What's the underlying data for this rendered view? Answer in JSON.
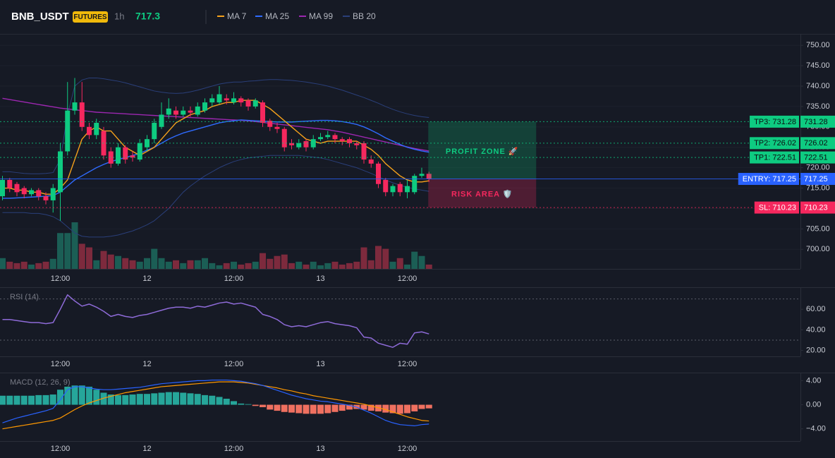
{
  "chart_data": [
    {
      "type": "candlestick",
      "title": "BNB_USDT",
      "badge": "FUTURES",
      "interval": "1h",
      "last_price": 717.3,
      "categories": [
        null,
        null,
        null,
        null,
        null,
        null,
        null,
        null,
        "12:00",
        null,
        null,
        null,
        null,
        null,
        null,
        null,
        null,
        null,
        null,
        null,
        "12",
        null,
        null,
        null,
        null,
        null,
        null,
        null,
        null,
        null,
        null,
        null,
        "12:00",
        null,
        null,
        null,
        null,
        null,
        null,
        null,
        null,
        null,
        null,
        null,
        "13",
        null,
        null,
        null,
        null,
        null,
        null,
        null,
        null,
        null,
        null,
        null,
        "12:00",
        null,
        null,
        null
      ],
      "open": [
        713,
        717,
        716,
        715,
        713.5,
        714.5,
        713,
        712,
        714,
        724,
        734,
        736,
        730,
        728,
        729,
        724,
        721,
        725,
        723,
        722,
        725,
        727,
        730,
        733,
        734,
        733,
        734,
        733,
        734,
        736,
        736,
        737,
        736,
        737,
        736.5,
        735,
        736,
        731.5,
        730,
        729.5,
        726,
        725,
        726.5,
        725,
        727,
        727.5,
        728,
        727,
        727,
        726,
        726,
        722,
        721,
        717,
        714,
        716,
        714,
        714,
        718,
        718.5
      ],
      "high": [
        718,
        717.5,
        716.5,
        715.5,
        715,
        715,
        714,
        716,
        726,
        741,
        742,
        741,
        731,
        732,
        730,
        725,
        726,
        725.5,
        724,
        727,
        728,
        732,
        736,
        737,
        735,
        735,
        735,
        736,
        737,
        738,
        740,
        738,
        738.5,
        737.5,
        737,
        737,
        736.5,
        732,
        731,
        730,
        727,
        727,
        727,
        728,
        728.5,
        729,
        728.5,
        727.5,
        727.5,
        726.5,
        726.5,
        723,
        721.5,
        717.5,
        716,
        716.5,
        717,
        718.5,
        720,
        719
      ],
      "low": [
        712,
        714,
        713,
        712.5,
        713,
        712,
        711,
        709,
        707,
        723,
        733,
        729,
        727,
        727,
        722,
        720,
        720.5,
        721,
        721.5,
        721.5,
        724,
        726,
        729.5,
        732,
        732,
        732.5,
        732.5,
        732.5,
        733.5,
        735,
        735.5,
        735.5,
        735.5,
        735,
        734,
        734.5,
        730,
        729,
        728.5,
        724,
        724.5,
        724.5,
        724,
        724.5,
        726.5,
        727,
        726,
        725.5,
        725,
        724.5,
        721,
        720,
        715,
        713,
        713,
        713,
        712.5,
        713.5,
        717.5,
        716.5
      ],
      "close": [
        717,
        715,
        714,
        713.5,
        714.5,
        713,
        712,
        715,
        724,
        734,
        736,
        730,
        728,
        731,
        723,
        721,
        725,
        722,
        722.5,
        726,
        727,
        731,
        733,
        734.5,
        733,
        734,
        733.5,
        735,
        736,
        737,
        738,
        736.5,
        737,
        736,
        735,
        736.5,
        731,
        730,
        729.5,
        725,
        725.5,
        726,
        725,
        727,
        727.5,
        728,
        727,
        726.5,
        726,
        725.5,
        722,
        721,
        716,
        714,
        715.5,
        714,
        715.5,
        718,
        718.5,
        717.25
      ],
      "volume": [
        15,
        10,
        8,
        10,
        6,
        8,
        10,
        14,
        50,
        50,
        65,
        35,
        30,
        12,
        25,
        20,
        18,
        15,
        12,
        10,
        15,
        28,
        15,
        10,
        12,
        8,
        12,
        12,
        15,
        8,
        5,
        8,
        10,
        6,
        8,
        10,
        22,
        14,
        18,
        20,
        8,
        10,
        6,
        10,
        5,
        8,
        10,
        6,
        8,
        10,
        30,
        12,
        32,
        28,
        10,
        15,
        6,
        24,
        18,
        6
      ],
      "up_color": "#0ecb81",
      "down_color": "#f6285e",
      "volume_up_color": "#1b5e55",
      "volume_down_color": "#7d2a3d",
      "series": [
        {
          "name": "MA 7",
          "color": "#f7a21b",
          "values": [
            715,
            715,
            714.5,
            714.5,
            714,
            714,
            713.5,
            713.5,
            715,
            717,
            722,
            727,
            729,
            730,
            729,
            729,
            727,
            725,
            724,
            723,
            724,
            725,
            727,
            729,
            731,
            732,
            733,
            733.5,
            734,
            735,
            735.5,
            736,
            736,
            736.5,
            736.5,
            736.5,
            735.5,
            734.5,
            733,
            731.5,
            730,
            728.5,
            727,
            726.5,
            726,
            726.5,
            726.5,
            726.5,
            726.5,
            726.5,
            725.5,
            724.5,
            723,
            721,
            719.5,
            718,
            717,
            716.5,
            716.5,
            716.8
          ]
        },
        {
          "name": "MA 25",
          "color": "#2f6bff",
          "values": [
            712.5,
            712.5,
            712.6,
            712.7,
            712.8,
            712.9,
            713,
            713.2,
            714,
            715.5,
            717,
            718,
            719,
            720,
            720.8,
            721.5,
            722,
            722.5,
            723,
            723.5,
            724.3,
            725,
            726,
            727,
            727.8,
            728.5,
            729,
            729.5,
            730,
            730.5,
            731,
            731.3,
            731.5,
            731.7,
            731.6,
            731.5,
            731.4,
            731.3,
            731.2,
            731.2,
            731.2,
            731.3,
            731.4,
            731.5,
            731.6,
            731.6,
            731.5,
            731.3,
            731,
            730.6,
            730,
            729.2,
            728.3,
            727.3,
            726.5,
            725.7,
            725,
            724.5,
            724.1,
            723.8
          ]
        },
        {
          "name": "MA 99",
          "color": "#9c27b0",
          "values": [
            737,
            736.7,
            736.4,
            736.1,
            735.8,
            735.5,
            735.2,
            734.9,
            734.6,
            734.4,
            734.2,
            734,
            733.8,
            733.6,
            733.5,
            733.4,
            733.3,
            733.2,
            733.1,
            733,
            732.9,
            732.8,
            732.7,
            732.6,
            732.5,
            732.4,
            732.3,
            732.2,
            732.1,
            732,
            731.9,
            731.8,
            731.7,
            731.6,
            731.5,
            731.3,
            731.1,
            730.9,
            730.7,
            730.5,
            730.3,
            730.1,
            729.9,
            729.7,
            729.5,
            729.3,
            729,
            728.7,
            728.3,
            727.9,
            727.5,
            727.1,
            726.7,
            726.3,
            725.9,
            725.5,
            725.1,
            724.7,
            724.4,
            724.1
          ]
        },
        {
          "name": "BB 20",
          "color": "#2a3f7a",
          "values": [
            719,
            719,
            718.8,
            718.6,
            718.5,
            718.5,
            718.6,
            718.8,
            722,
            733,
            740,
            741.5,
            742,
            742,
            741.8,
            741.5,
            741.2,
            740.8,
            740.3,
            739.8,
            739.3,
            738.8,
            738.5,
            738.3,
            738.2,
            738.3,
            738.6,
            739,
            739.5,
            740,
            740.5,
            740.8,
            741,
            741,
            741.2,
            741.3,
            741.5,
            741.6,
            741.6,
            741.5,
            741.4,
            741.2,
            741,
            740.7,
            740.4,
            740,
            739.5,
            739,
            738.4,
            737.8,
            737.2,
            736.5,
            735.8,
            735,
            734.3,
            733.7,
            733.2,
            732.8,
            732.5,
            732.3
          ],
          "lower": [
            709,
            709,
            709,
            709,
            708.8,
            708.8,
            708.5,
            708,
            707,
            705.5,
            704,
            703.2,
            703,
            703,
            703,
            703.2,
            703.5,
            704,
            704.5,
            705.2,
            706,
            707,
            708.5,
            710,
            712,
            714,
            715.5,
            716.8,
            718,
            719,
            720,
            720.8,
            721.5,
            722,
            722.4,
            722.6,
            722.8,
            723,
            723,
            723,
            723,
            723,
            722.8,
            722.6,
            722.4,
            722,
            721.5,
            721,
            720.5,
            720,
            719.3,
            718.6,
            717.8,
            717,
            716.3,
            715.7,
            715.2,
            714.8,
            714.5,
            714.2
          ]
        }
      ],
      "ylim": [
        695.2,
        752.8
      ],
      "yticks": [
        {
          "value": 750,
          "label": "750.00"
        },
        {
          "value": 745,
          "label": "745.00"
        },
        {
          "value": 740,
          "label": "740.00"
        },
        {
          "value": 735,
          "label": "735.00"
        },
        {
          "value": 730,
          "label": "730.00"
        },
        {
          "value": 725,
          "label": "725.00"
        },
        {
          "value": 720,
          "label": "720.00"
        },
        {
          "value": 715,
          "label": "715.00"
        },
        {
          "value": 710,
          "label": "710.00"
        },
        {
          "value": 705,
          "label": "705.00"
        },
        {
          "value": 700,
          "label": "700.00"
        }
      ],
      "grid": true,
      "levels": [
        {
          "label": "TP3: 731.28",
          "value": 731.28,
          "color": "#0ecb81",
          "text_color": "#0b0e11",
          "line_style": "dotted"
        },
        {
          "label": "TP2: 726.02",
          "value": 726.02,
          "color": "#0ecb81",
          "text_color": "#0b0e11",
          "line_style": "dotted"
        },
        {
          "label": "TP1: 722.51",
          "value": 722.51,
          "color": "#0ecb81",
          "text_color": "#0b0e11",
          "line_style": "dotted"
        },
        {
          "label": "ENTRY: 717.25",
          "value": 717.25,
          "color": "#2962ff",
          "text_color": "#ffffff",
          "line_style": "solid"
        },
        {
          "label": "SL: 710.23",
          "value": 710.23,
          "color": "#f6285e",
          "text_color": "#ffffff",
          "line_style": "dotted"
        }
      ],
      "profit_label": "PROFIT ZONE 🚀",
      "risk_label": "RISK AREA 🛡️"
    },
    {
      "type": "line",
      "title": "RSI (14)",
      "color": "#8e6bd8",
      "values": [
        50,
        50,
        49,
        48,
        47,
        47,
        46,
        47,
        60,
        74,
        68,
        63,
        65,
        62,
        58,
        53,
        55,
        53,
        52,
        54,
        55,
        57,
        59,
        61,
        62,
        62,
        61,
        63,
        62,
        64,
        66,
        67,
        65,
        66,
        64,
        62,
        55,
        53,
        50,
        45,
        43,
        44,
        43,
        45,
        47,
        48,
        46,
        45,
        44,
        42,
        33,
        32,
        27,
        25,
        23,
        27,
        26,
        37,
        38,
        36
      ],
      "ylim": [
        14.2,
        80.7
      ],
      "yticks": [
        {
          "value": 60,
          "label": "60.00"
        },
        {
          "value": 40,
          "label": "40.00"
        },
        {
          "value": 20,
          "label": "20.00"
        }
      ],
      "bands": [
        70,
        30
      ]
    },
    {
      "type": "macd",
      "title": "MACD (12, 26, 9)",
      "macd": {
        "color": "#2962ff",
        "values": [
          -3,
          -2.6,
          -2.2,
          -1.9,
          -1.6,
          -1.3,
          -1,
          -0.6,
          0.8,
          2.5,
          3,
          3,
          2.8,
          2.6,
          2.5,
          2.5,
          2.6,
          2.7,
          2.8,
          2.9,
          3.1,
          3.3,
          3.5,
          3.6,
          3.7,
          3.8,
          3.9,
          4,
          4,
          4.1,
          4.1,
          4.1,
          4,
          3.9,
          3.7,
          3.5,
          3.2,
          2.8,
          2.4,
          2,
          1.6,
          1.3,
          1,
          0.8,
          0.6,
          0.5,
          0.3,
          0.1,
          -0.1,
          -0.4,
          -0.9,
          -1.4,
          -2,
          -2.6,
          -3,
          -3.3,
          -3.4,
          -3.5,
          -3.3,
          -3.2
        ]
      },
      "signal": {
        "color": "#ff9800",
        "values": [
          -4,
          -3.8,
          -3.6,
          -3.4,
          -3.2,
          -3,
          -2.8,
          -2.6,
          -2.2,
          -1.5,
          -0.8,
          -0.2,
          0.3,
          0.7,
          1.1,
          1.4,
          1.7,
          2,
          2.2,
          2.4,
          2.6,
          2.8,
          3,
          3.1,
          3.2,
          3.3,
          3.4,
          3.5,
          3.6,
          3.7,
          3.8,
          3.8,
          3.8,
          3.7,
          3.6,
          3.4,
          3.2,
          3,
          2.8,
          2.5,
          2.3,
          2,
          1.8,
          1.5,
          1.3,
          1.1,
          0.9,
          0.7,
          0.5,
          0.3,
          0.1,
          -0.2,
          -0.5,
          -0.8,
          -1.2,
          -1.6,
          -2,
          -2.3,
          -2.6,
          -2.7
        ]
      },
      "histogram": {
        "up_color": "#26a69a",
        "down_color": "#ef7060",
        "values": [
          1.5,
          1.5,
          1.5,
          1.5,
          1.5,
          1.6,
          1.6,
          1.7,
          2.5,
          3,
          3.2,
          3.2,
          3,
          2.5,
          2,
          1.7,
          1.6,
          1.6,
          1.7,
          1.8,
          1.8,
          1.9,
          2,
          2.1,
          2.1,
          2,
          1.9,
          1.8,
          1.6,
          1.5,
          1.3,
          1,
          0.6,
          0.2,
          0.1,
          -0.2,
          -0.4,
          -0.8,
          -1,
          -1.2,
          -1.3,
          -1.4,
          -1.5,
          -1.5,
          -1.5,
          -1.4,
          -1.2,
          -1,
          -0.8,
          -0.7,
          -0.8,
          -1,
          -1.1,
          -1.3,
          -1.4,
          -1.5,
          -1.4,
          -1.1,
          -0.7,
          -0.6
        ]
      },
      "ylim": [
        -6.03,
        5.22
      ],
      "yticks": [
        {
          "value": 4,
          "label": "4.00"
        },
        {
          "value": 0,
          "label": "0.00"
        },
        {
          "value": -4,
          "label": "−4.00"
        }
      ]
    }
  ]
}
